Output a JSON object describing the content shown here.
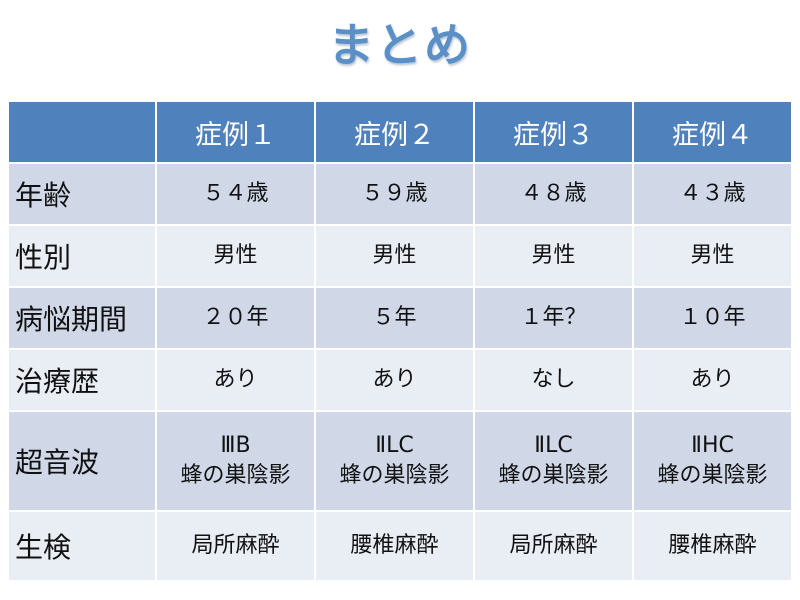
{
  "title": "まとめ",
  "table": {
    "columns": [
      "",
      "症例１",
      "症例２",
      "症例３",
      "症例４"
    ],
    "rows": [
      {
        "label": "年齢",
        "values": [
          "５４歳",
          "５９歳",
          "４８歳",
          "４３歳"
        ]
      },
      {
        "label": "性別",
        "values": [
          "男性",
          "男性",
          "男性",
          "男性"
        ]
      },
      {
        "label": "病悩期間",
        "values": [
          "２０年",
          "５年",
          "１年？",
          "１０年"
        ]
      },
      {
        "label": "治療歴",
        "values": [
          "あり",
          "あり",
          "なし",
          "あり"
        ]
      },
      {
        "label": "超音波",
        "values": [
          [
            "ⅢB",
            "蜂の巣陰影"
          ],
          [
            "ⅡLC",
            "蜂の巣陰影"
          ],
          [
            "ⅡLC",
            "蜂の巣陰影"
          ],
          [
            "ⅡHC",
            "蜂の巣陰影"
          ]
        ]
      },
      {
        "label": "生検",
        "values": [
          "局所麻酔",
          "腰椎麻酔",
          "局所麻酔",
          "腰椎麻酔"
        ]
      }
    ]
  },
  "colors": {
    "header_bg": "#4f81bd",
    "band_dark": "#d0d8e8",
    "band_light": "#e9edf4",
    "title": "#5b8fc7"
  }
}
